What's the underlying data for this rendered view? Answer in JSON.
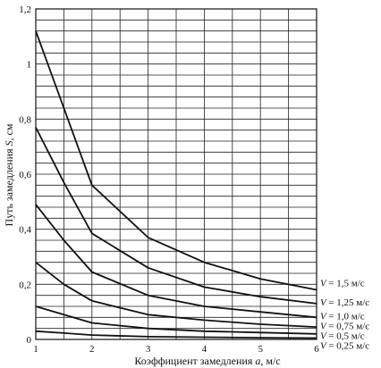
{
  "chart_data": {
    "type": "line",
    "xlabel": {
      "before": "Коэффициент замедления ",
      "var": "a",
      "after": ", м/с"
    },
    "ylabel": {
      "before": "Путь замедления ",
      "var": "S",
      "after": ", см"
    },
    "x_ticks": [
      "1",
      "2",
      "3",
      "4",
      "5",
      "6"
    ],
    "y_ticks": [
      "0",
      "0,2",
      "0,4",
      "0,6",
      "0,8",
      "1",
      "1,2"
    ],
    "xlim": [
      1,
      6
    ],
    "ylim": [
      0,
      1.2
    ],
    "grid": true,
    "x": [
      1,
      1.5,
      2,
      3,
      4,
      5,
      6
    ],
    "series": [
      {
        "name": "= 1,5 м/с",
        "values": [
          1.12,
          0.84,
          0.56,
          0.37,
          0.28,
          0.22,
          0.18
        ]
      },
      {
        "name": "= 1,25 м/с",
        "values": [
          0.77,
          0.57,
          0.385,
          0.26,
          0.19,
          0.155,
          0.13
        ]
      },
      {
        "name": "= 1,0 м/с",
        "values": [
          0.49,
          0.36,
          0.245,
          0.16,
          0.12,
          0.1,
          0.08
        ]
      },
      {
        "name": "= 0,75 м/с",
        "values": [
          0.28,
          0.2,
          0.14,
          0.09,
          0.07,
          0.055,
          0.045
        ]
      },
      {
        "name": "= 0,5 м/с",
        "values": [
          0.12,
          0.09,
          0.06,
          0.04,
          0.03,
          0.025,
          0.02
        ]
      },
      {
        "name": "= 0,25 м/с",
        "values": [
          0.03,
          0.023,
          0.016,
          0.01,
          0.008,
          0.006,
          0.005
        ]
      }
    ],
    "series_var": "V"
  }
}
